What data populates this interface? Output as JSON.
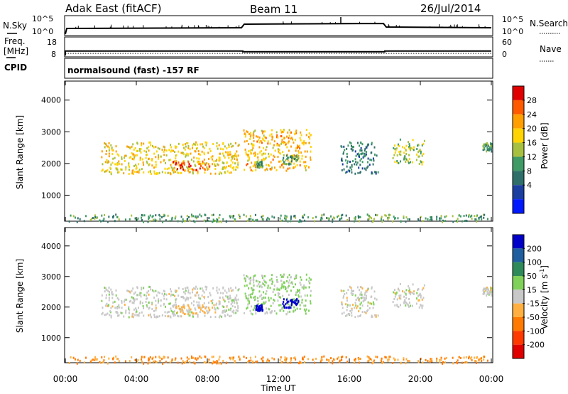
{
  "header": {
    "station": "Adak East (fitACF)",
    "beam": "Beam 11",
    "date": "26/Jul/2014"
  },
  "noise_panel": {
    "left_label": "N.Sky",
    "right_label": "N.Search",
    "left_ticks": [
      "10^5",
      "10^0"
    ],
    "right_ticks": [
      "10^5",
      "10^0"
    ]
  },
  "freq_panel": {
    "left_label_1": "Freq.",
    "left_label_2": "[MHz]",
    "right_label": "Nave",
    "left_ticks": [
      "18",
      "8"
    ],
    "right_ticks": [
      "60",
      "0"
    ]
  },
  "cpid_panel": {
    "label": "CPID",
    "mode_text": "normalsound (fast) -157 RF"
  },
  "range_axis": {
    "ylabel": "Slant Range [km]",
    "ticks": [
      "4000",
      "3000",
      "2000",
      "1000"
    ]
  },
  "time_axis": {
    "xlabel": "Time UT",
    "ticks": [
      "00:00",
      "04:00",
      "08:00",
      "12:00",
      "16:00",
      "20:00",
      "00:00"
    ]
  },
  "power_scale": {
    "label": "Power [dB]",
    "ticks": [
      "28",
      "24",
      "20",
      "16",
      "12",
      "8",
      "4"
    ],
    "colors": [
      "#e00000",
      "#ff5a00",
      "#ff9f00",
      "#ffd400",
      "#a8c040",
      "#3f9a66",
      "#2f6f6a",
      "#1b3fa0",
      "#0019ff"
    ]
  },
  "velocity_scale": {
    "label": "Velocity [m s^-1]",
    "ticks": [
      "200",
      "100",
      "50",
      "15",
      "-15",
      "-50",
      "-100",
      "-200"
    ],
    "colors": [
      "#0000c8",
      "#1f5fa0",
      "#2f8a5a",
      "#7fd15a",
      "#c8c8c8",
      "#ffb040",
      "#ff7a00",
      "#ff3a00",
      "#e00000"
    ]
  },
  "chart_data": {
    "type": "heatmap",
    "title": "Adak East (fitACF) Beam 11 26/Jul/2014",
    "xlabel": "Time UT",
    "ylabel": "Slant Range [km]",
    "x_range_hours": [
      0,
      24
    ],
    "y_range_km": [
      180,
      4600
    ],
    "freq_mhz_segments": [
      {
        "start": 0,
        "end": 10,
        "value": 11
      },
      {
        "start": 10,
        "end": 18,
        "value": 10.5
      },
      {
        "start": 18,
        "end": 24,
        "value": 11
      }
    ],
    "nave": 1,
    "scatter_regions": [
      {
        "t0": 2.0,
        "t1": 9.8,
        "r0": 1700,
        "r1": 2700,
        "power_db": 18,
        "velocity": 0
      },
      {
        "t0": 6.0,
        "t1": 8.2,
        "r0": 1800,
        "r1": 2100,
        "power_db": 27,
        "velocity": -30
      },
      {
        "t0": 10.0,
        "t1": 13.8,
        "r0": 1800,
        "r1": 3100,
        "power_db": 20,
        "velocity": 20
      },
      {
        "t0": 10.7,
        "t1": 11.1,
        "r0": 1900,
        "r1": 2100,
        "power_db": 10,
        "velocity": 250
      },
      {
        "t0": 12.2,
        "t1": 13.1,
        "r0": 2000,
        "r1": 2300,
        "power_db": 10,
        "velocity": 250
      },
      {
        "t0": 15.5,
        "t1": 17.6,
        "r0": 1700,
        "r1": 2700,
        "power_db": 6,
        "velocity": 0
      },
      {
        "t0": 18.4,
        "t1": 20.2,
        "r0": 2000,
        "r1": 2800,
        "power_db": 14,
        "velocity": 0
      },
      {
        "t0": 23.5,
        "t1": 24.0,
        "r0": 2400,
        "r1": 2700,
        "power_db": 10,
        "velocity": 0
      },
      {
        "t0": 0.0,
        "t1": 24.0,
        "r0": 180,
        "r1": 420,
        "power_db": 10,
        "velocity": -50
      }
    ]
  }
}
